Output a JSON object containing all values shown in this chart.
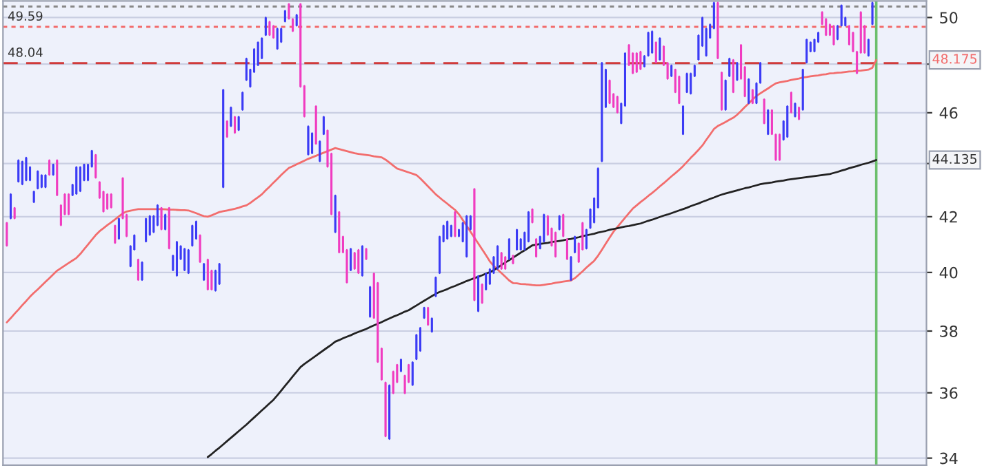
{
  "chart_data": {
    "type": "candlestick",
    "categories": [
      null,
      null,
      null,
      null,
      null,
      null,
      null,
      null,
      null,
      null,
      null,
      null,
      null,
      null,
      null,
      null,
      null,
      null,
      null,
      null,
      null,
      null,
      null,
      null,
      null,
      null,
      null,
      null,
      null,
      null,
      null,
      null,
      null,
      null,
      null,
      null,
      null,
      null,
      null,
      null,
      null,
      null,
      null,
      null,
      null,
      null,
      null,
      null,
      null,
      null,
      null,
      null,
      null,
      null,
      null,
      null,
      null,
      null,
      null,
      null,
      null,
      null,
      null,
      null,
      null,
      null,
      null,
      null,
      null,
      null,
      null,
      null,
      null,
      null,
      null,
      null,
      null,
      null,
      null,
      null,
      null,
      null,
      null,
      null,
      null,
      null,
      null,
      null,
      null,
      null,
      null,
      null,
      null,
      null,
      null,
      null,
      null,
      null,
      null,
      null,
      null,
      null,
      null,
      null,
      null,
      null,
      null,
      null,
      null,
      null,
      null,
      null,
      null,
      null,
      null,
      null,
      null,
      null,
      null,
      null,
      null,
      null,
      null,
      null,
      null,
      null,
      null,
      null,
      null,
      null,
      null,
      null,
      null,
      null,
      null,
      null,
      null,
      null,
      null,
      null,
      null,
      null,
      null,
      null,
      null,
      null,
      null,
      null,
      null,
      null,
      null,
      null,
      null,
      null,
      null,
      null,
      null,
      null,
      null,
      null,
      null,
      null,
      null,
      null,
      null,
      null,
      null,
      null,
      null,
      null,
      null,
      null,
      null,
      null,
      null,
      null,
      null,
      null,
      null,
      null,
      null,
      null,
      null,
      null,
      null,
      null,
      null,
      null,
      null,
      null,
      null,
      null,
      null,
      null,
      null,
      null,
      null,
      null,
      null,
      null,
      null,
      null,
      null,
      null,
      null,
      null,
      null,
      null,
      null,
      null,
      null,
      null,
      null,
      null,
      null,
      null,
      null,
      null,
      null,
      null,
      null,
      null,
      null,
      null,
      null,
      null
    ],
    "ohlc": [
      [
        41.78,
        41.78,
        40.94,
        40.94
      ],
      [
        41.93,
        42.84,
        41.93,
        42.84
      ],
      [
        42.33,
        42.33,
        41.93,
        41.93
      ],
      [
        43.3,
        44.13,
        43.3,
        44.13
      ],
      [
        43.2,
        44.08,
        43.2,
        44.08
      ],
      [
        43.35,
        44.23,
        43.35,
        44.23
      ],
      [
        43.35,
        43.87,
        43.35,
        43.87
      ],
      [
        42.53,
        42.94,
        42.53,
        42.94
      ],
      [
        43.04,
        43.71,
        43.04,
        43.71
      ],
      [
        43.09,
        43.56,
        43.09,
        43.56
      ],
      [
        43.09,
        43.56,
        43.09,
        43.56
      ],
      [
        44.13,
        44.13,
        43.56,
        43.56
      ],
      [
        43.56,
        43.97,
        43.56,
        43.97
      ],
      [
        44.13,
        44.13,
        42.79,
        42.79
      ],
      [
        42.43,
        42.43,
        41.68,
        41.68
      ],
      [
        42.84,
        42.84,
        42.08,
        42.08
      ],
      [
        42.84,
        42.84,
        42.08,
        42.08
      ],
      [
        42.79,
        43.2,
        42.79,
        43.2
      ],
      [
        42.84,
        43.87,
        42.84,
        43.87
      ],
      [
        42.94,
        43.87,
        42.94,
        43.87
      ],
      [
        43.35,
        43.97,
        43.35,
        43.97
      ],
      [
        43.35,
        43.97,
        43.35,
        43.97
      ],
      [
        43.87,
        44.5,
        43.87,
        44.5
      ],
      [
        44.34,
        44.34,
        43.45,
        43.45
      ],
      [
        43.3,
        43.3,
        42.69,
        42.69
      ],
      [
        42.94,
        42.94,
        42.18,
        42.18
      ],
      [
        42.84,
        42.84,
        42.28,
        42.28
      ],
      [
        42.84,
        42.84,
        42.33,
        42.33
      ],
      [
        41.68,
        41.68,
        41.04,
        41.04
      ],
      [
        41.19,
        41.93,
        41.19,
        41.93
      ],
      [
        43.45,
        43.45,
        41.93,
        41.93
      ],
      [
        42.08,
        42.08,
        41.28,
        41.28
      ],
      [
        40.21,
        40.94,
        40.21,
        40.94
      ],
      [
        40.8,
        41.33,
        40.8,
        41.33
      ],
      [
        40.46,
        40.46,
        39.73,
        39.73
      ],
      [
        39.73,
        40.36,
        39.73,
        40.36
      ],
      [
        41.09,
        41.93,
        41.09,
        41.93
      ],
      [
        41.33,
        42.03,
        41.33,
        42.03
      ],
      [
        41.43,
        42.03,
        41.43,
        42.03
      ],
      [
        41.68,
        42.43,
        41.68,
        42.43
      ],
      [
        42.33,
        42.33,
        41.53,
        41.53
      ],
      [
        41.53,
        42.08,
        41.53,
        42.08
      ],
      [
        42.33,
        42.33,
        40.84,
        40.84
      ],
      [
        40.07,
        40.6,
        40.07,
        40.6
      ],
      [
        39.88,
        41.09,
        39.88,
        41.09
      ],
      [
        40.46,
        40.94,
        40.46,
        40.94
      ],
      [
        40.07,
        40.84,
        40.07,
        40.84
      ],
      [
        39.97,
        40.8,
        39.97,
        40.8
      ],
      [
        40.94,
        41.68,
        40.94,
        41.68
      ],
      [
        41.19,
        41.83,
        41.19,
        41.83
      ],
      [
        41.33,
        41.33,
        40.36,
        40.36
      ],
      [
        39.73,
        40.31,
        39.73,
        40.31
      ],
      [
        40.46,
        40.46,
        39.4,
        39.4
      ],
      [
        40.07,
        40.07,
        39.4,
        39.4
      ],
      [
        39.36,
        40.07,
        39.36,
        40.07
      ],
      [
        39.59,
        40.31,
        39.59,
        40.31
      ],
      [
        43.09,
        46.94,
        43.09,
        46.94
      ],
      [
        45.67,
        45.67,
        45.03,
        45.03
      ],
      [
        45.46,
        46.22,
        45.46,
        46.22
      ],
      [
        45.84,
        45.84,
        45.19,
        45.19
      ],
      [
        45.3,
        45.84,
        45.3,
        45.84
      ],
      [
        46.11,
        46.83,
        46.11,
        46.83
      ],
      [
        47.33,
        48.24,
        47.33,
        48.24
      ],
      [
        47.05,
        47.78,
        47.05,
        47.78
      ],
      [
        47.66,
        48.64,
        47.66,
        48.64
      ],
      [
        47.95,
        48.93,
        47.95,
        48.93
      ],
      [
        48.24,
        49.11,
        48.24,
        49.11
      ],
      [
        49.23,
        50.0,
        49.23,
        50.0
      ],
      [
        49.82,
        49.82,
        49.23,
        49.23
      ],
      [
        49.64,
        49.64,
        49.11,
        49.11
      ],
      [
        48.64,
        49.52,
        48.64,
        49.52
      ],
      [
        48.93,
        49.52,
        48.93,
        49.52
      ],
      [
        49.82,
        50.3,
        49.82,
        50.3
      ],
      [
        50.6,
        50.6,
        49.94,
        49.94
      ],
      [
        49.94,
        49.94,
        49.4,
        49.4
      ],
      [
        49.64,
        50.12,
        49.64,
        50.12
      ],
      [
        50.6,
        50.6,
        47.05,
        47.05
      ],
      [
        47.1,
        47.1,
        45.84,
        45.84
      ],
      [
        44.34,
        45.46,
        44.34,
        45.46
      ],
      [
        44.39,
        45.19,
        44.39,
        45.19
      ],
      [
        46.27,
        46.27,
        44.76,
        44.76
      ],
      [
        44.08,
        44.87,
        44.08,
        44.87
      ],
      [
        45.14,
        45.84,
        45.14,
        45.84
      ],
      [
        45.3,
        45.3,
        43.87,
        43.87
      ],
      [
        44.39,
        44.39,
        42.08,
        42.08
      ],
      [
        41.43,
        42.79,
        41.43,
        42.79
      ],
      [
        42.18,
        42.18,
        40.7,
        40.7
      ],
      [
        41.28,
        41.28,
        40.7,
        40.7
      ],
      [
        40.8,
        40.8,
        39.64,
        39.64
      ],
      [
        40.07,
        40.84,
        40.07,
        40.84
      ],
      [
        40.7,
        40.7,
        40.12,
        40.12
      ],
      [
        40.8,
        40.8,
        39.97,
        39.97
      ],
      [
        39.88,
        40.94,
        39.88,
        40.94
      ],
      [
        40.84,
        40.84,
        40.46,
        40.46
      ],
      [
        38.47,
        39.5,
        38.47,
        39.5
      ],
      [
        39.97,
        39.97,
        38.43,
        38.43
      ],
      [
        39.64,
        39.64,
        36.98,
        36.98
      ],
      [
        37.43,
        37.43,
        36.41,
        36.41
      ],
      [
        36.33,
        36.33,
        34.65,
        34.65
      ],
      [
        34.57,
        36.24,
        34.57,
        36.24
      ],
      [
        36.68,
        36.68,
        35.98,
        35.98
      ],
      [
        36.9,
        36.9,
        36.33,
        36.33
      ],
      [
        36.68,
        37.07,
        36.68,
        37.07
      ],
      [
        36.55,
        36.55,
        35.98,
        35.98
      ],
      [
        36.9,
        36.9,
        36.33,
        36.33
      ],
      [
        36.24,
        36.98,
        36.24,
        36.98
      ],
      [
        37.07,
        37.88,
        37.07,
        37.88
      ],
      [
        37.34,
        38.11,
        37.34,
        38.11
      ],
      [
        38.43,
        38.79,
        38.43,
        38.79
      ],
      [
        38.79,
        38.79,
        38.2,
        38.2
      ],
      [
        37.97,
        38.43,
        37.97,
        38.43
      ],
      [
        39.17,
        39.83,
        39.17,
        39.83
      ],
      [
        39.97,
        41.28,
        39.97,
        41.28
      ],
      [
        41.09,
        41.68,
        41.09,
        41.68
      ],
      [
        41.19,
        41.83,
        41.19,
        41.83
      ],
      [
        41.28,
        41.68,
        41.28,
        41.68
      ],
      [
        42.18,
        42.18,
        41.28,
        41.28
      ],
      [
        41.28,
        41.53,
        41.28,
        41.53
      ],
      [
        41.09,
        41.78,
        41.09,
        41.78
      ],
      [
        40.55,
        42.03,
        40.55,
        42.03
      ],
      [
        41.53,
        42.03,
        41.53,
        42.03
      ],
      [
        43.04,
        43.04,
        39.03,
        39.03
      ],
      [
        38.66,
        39.88,
        38.66,
        39.88
      ],
      [
        39.59,
        39.59,
        38.94,
        38.94
      ],
      [
        39.4,
        39.97,
        39.4,
        39.97
      ],
      [
        39.59,
        40.12,
        39.59,
        40.12
      ],
      [
        39.97,
        40.55,
        39.97,
        40.55
      ],
      [
        40.12,
        40.94,
        40.12,
        40.94
      ],
      [
        40.7,
        40.7,
        40.12,
        40.12
      ],
      [
        40.55,
        40.55,
        40.12,
        40.12
      ],
      [
        40.46,
        41.19,
        40.46,
        41.19
      ],
      [
        40.6,
        40.6,
        40.31,
        40.31
      ],
      [
        40.8,
        41.53,
        40.8,
        41.53
      ],
      [
        40.8,
        41.19,
        40.8,
        41.19
      ],
      [
        40.8,
        41.43,
        40.8,
        41.43
      ],
      [
        41.09,
        42.18,
        41.09,
        42.18
      ],
      [
        42.28,
        42.28,
        41.78,
        41.78
      ],
      [
        41.19,
        41.19,
        40.55,
        40.55
      ],
      [
        40.84,
        41.28,
        40.84,
        41.28
      ],
      [
        41.09,
        42.08,
        41.09,
        42.08
      ],
      [
        42.03,
        42.03,
        41.33,
        41.33
      ],
      [
        41.58,
        41.58,
        40.94,
        40.94
      ],
      [
        41.43,
        41.43,
        40.55,
        40.55
      ],
      [
        41.53,
        42.03,
        41.53,
        42.03
      ],
      [
        42.08,
        42.08,
        41.28,
        41.28
      ],
      [
        41.19,
        41.19,
        40.46,
        40.46
      ],
      [
        39.73,
        40.55,
        39.73,
        40.55
      ],
      [
        40.7,
        41.28,
        40.7,
        41.28
      ],
      [
        41.04,
        41.04,
        40.36,
        40.36
      ],
      [
        41.78,
        41.78,
        40.8,
        40.8
      ],
      [
        40.84,
        41.53,
        40.84,
        41.53
      ],
      [
        41.58,
        42.28,
        41.58,
        42.28
      ],
      [
        41.78,
        42.69,
        41.78,
        42.69
      ],
      [
        42.33,
        43.82,
        42.33,
        43.82
      ],
      [
        44.08,
        48.06,
        44.08,
        48.06
      ],
      [
        46.22,
        47.78,
        46.22,
        47.78
      ],
      [
        47.33,
        47.33,
        46.38,
        46.38
      ],
      [
        46.77,
        46.77,
        46.22,
        46.22
      ],
      [
        46.66,
        46.66,
        46.0,
        46.0
      ],
      [
        45.57,
        46.38,
        45.57,
        46.38
      ],
      [
        46.27,
        48.47,
        46.27,
        48.47
      ],
      [
        48.82,
        48.82,
        47.95,
        47.95
      ],
      [
        48.47,
        48.47,
        47.61,
        47.61
      ],
      [
        48.47,
        48.47,
        47.66,
        47.66
      ],
      [
        48.53,
        48.53,
        47.78,
        47.78
      ],
      [
        47.89,
        48.35,
        47.89,
        48.35
      ],
      [
        48.35,
        49.35,
        48.35,
        49.35
      ],
      [
        48.47,
        49.4,
        48.47,
        49.4
      ],
      [
        48.93,
        48.93,
        48.06,
        48.06
      ],
      [
        48.18,
        49.11,
        48.18,
        49.11
      ],
      [
        48.76,
        48.76,
        47.95,
        47.95
      ],
      [
        48.06,
        48.06,
        47.38,
        47.38
      ],
      [
        47.49,
        47.95,
        47.49,
        47.95
      ],
      [
        47.78,
        47.78,
        46.83,
        46.83
      ],
      [
        47.49,
        47.49,
        46.38,
        46.38
      ],
      [
        45.14,
        46.27,
        45.14,
        46.27
      ],
      [
        46.83,
        47.61,
        46.83,
        47.61
      ],
      [
        46.77,
        47.61,
        46.77,
        47.61
      ],
      [
        47.49,
        47.95,
        47.49,
        47.95
      ],
      [
        48.18,
        49.23,
        48.18,
        49.23
      ],
      [
        48.76,
        50.0,
        48.76,
        50.0
      ],
      [
        48.35,
        49.52,
        48.35,
        49.52
      ],
      [
        49.11,
        49.7,
        49.11,
        49.7
      ],
      [
        49.52,
        50.66,
        49.52,
        50.66
      ],
      [
        50.66,
        50.66,
        48.24,
        48.24
      ],
      [
        47.66,
        47.66,
        46.11,
        46.11
      ],
      [
        46.11,
        47.33,
        46.11,
        47.33
      ],
      [
        47.49,
        48.24,
        47.49,
        48.24
      ],
      [
        48.18,
        48.18,
        46.83,
        46.83
      ],
      [
        47.33,
        48.06,
        47.33,
        48.06
      ],
      [
        48.82,
        48.82,
        47.38,
        47.38
      ],
      [
        47.89,
        47.89,
        46.66,
        46.66
      ],
      [
        46.38,
        47.38,
        46.38,
        47.38
      ],
      [
        46.94,
        46.94,
        46.38,
        46.38
      ],
      [
        46.38,
        47.21,
        46.38,
        47.21
      ],
      [
        47.21,
        48.06,
        47.21,
        48.06
      ],
      [
        46.55,
        46.55,
        45.57,
        45.57
      ],
      [
        45.14,
        46.11,
        45.14,
        46.11
      ],
      [
        46.11,
        46.11,
        45.14,
        45.14
      ],
      [
        45.14,
        45.14,
        44.13,
        44.13
      ],
      [
        45.14,
        45.14,
        44.13,
        44.13
      ],
      [
        44.92,
        45.67,
        44.92,
        45.67
      ],
      [
        45.03,
        46.27,
        45.03,
        46.27
      ],
      [
        46.83,
        46.83,
        46.0,
        46.0
      ],
      [
        45.84,
        46.38,
        45.84,
        46.38
      ],
      [
        46.22,
        46.22,
        45.73,
        45.73
      ],
      [
        46.11,
        47.78,
        46.11,
        47.78
      ],
      [
        48.06,
        49.05,
        48.06,
        49.05
      ],
      [
        48.53,
        48.93,
        48.53,
        48.93
      ],
      [
        48.53,
        49.05,
        48.53,
        49.05
      ],
      [
        48.93,
        49.35,
        48.93,
        49.35
      ],
      [
        50.24,
        50.24,
        49.7,
        49.7
      ],
      [
        49.94,
        49.94,
        49.23,
        49.23
      ],
      [
        49.7,
        49.7,
        49.23,
        49.23
      ],
      [
        49.64,
        49.64,
        48.82,
        48.82
      ],
      [
        49.05,
        49.64,
        49.05,
        49.64
      ],
      [
        49.64,
        50.54,
        49.64,
        50.54
      ],
      [
        49.64,
        50.0,
        49.64,
        50.0
      ],
      [
        49.64,
        49.64,
        48.82,
        48.82
      ],
      [
        49.35,
        49.35,
        48.53,
        48.53
      ],
      [
        48.53,
        48.53,
        47.61,
        47.61
      ],
      [
        50.24,
        50.24,
        48.47,
        48.47
      ],
      [
        49.64,
        49.64,
        48.47,
        48.47
      ],
      [
        48.35,
        49.05,
        48.35,
        49.05
      ],
      [
        49.7,
        50.66,
        49.7,
        50.66
      ],
      null
    ],
    "colors": [
      "#f03cc0",
      "#3b3bf5",
      "#f03cc0",
      "#3b3bf5",
      "#3b3bf5",
      "#3b3bf5",
      "#3b3bf5",
      "#3b3bf5",
      "#3b3bf5",
      "#3b3bf5",
      "#3b3bf5",
      "#f03cc0",
      "#3b3bf5",
      "#f03cc0",
      "#f03cc0",
      "#f03cc0",
      "#f03cc0",
      "#3b3bf5",
      "#3b3bf5",
      "#3b3bf5",
      "#3b3bf5",
      "#3b3bf5",
      "#3b3bf5",
      "#f03cc0",
      "#f03cc0",
      "#f03cc0",
      "#f03cc0",
      "#f03cc0",
      "#f03cc0",
      "#3b3bf5",
      "#f03cc0",
      "#f03cc0",
      "#3b3bf5",
      "#3b3bf5",
      "#f03cc0",
      "#3b3bf5",
      "#3b3bf5",
      "#3b3bf5",
      "#3b3bf5",
      "#3b3bf5",
      "#f03cc0",
      "#3b3bf5",
      "#f03cc0",
      "#3b3bf5",
      "#3b3bf5",
      "#3b3bf5",
      "#3b3bf5",
      "#3b3bf5",
      "#3b3bf5",
      "#3b3bf5",
      "#f03cc0",
      "#3b3bf5",
      "#f03cc0",
      "#f03cc0",
      "#3b3bf5",
      "#3b3bf5",
      "#3b3bf5",
      "#f03cc0",
      "#3b3bf5",
      "#f03cc0",
      "#3b3bf5",
      "#3b3bf5",
      "#3b3bf5",
      "#3b3bf5",
      "#3b3bf5",
      "#3b3bf5",
      "#3b3bf5",
      "#3b3bf5",
      "#f03cc0",
      "#f03cc0",
      "#3b3bf5",
      "#3b3bf5",
      "#3b3bf5",
      "#f03cc0",
      "#f03cc0",
      "#3b3bf5",
      "#f03cc0",
      "#f03cc0",
      "#3b3bf5",
      "#3b3bf5",
      "#f03cc0",
      "#3b3bf5",
      "#3b3bf5",
      "#f03cc0",
      "#f03cc0",
      "#3b3bf5",
      "#f03cc0",
      "#f03cc0",
      "#f03cc0",
      "#3b3bf5",
      "#f03cc0",
      "#f03cc0",
      "#3b3bf5",
      "#f03cc0",
      "#3b3bf5",
      "#f03cc0",
      "#f03cc0",
      "#f03cc0",
      "#f03cc0",
      "#3b3bf5",
      "#f03cc0",
      "#f03cc0",
      "#3b3bf5",
      "#f03cc0",
      "#f03cc0",
      "#3b3bf5",
      "#3b3bf5",
      "#3b3bf5",
      "#3b3bf5",
      "#f03cc0",
      "#3b3bf5",
      "#3b3bf5",
      "#3b3bf5",
      "#3b3bf5",
      "#3b3bf5",
      "#3b3bf5",
      "#f03cc0",
      "#3b3bf5",
      "#3b3bf5",
      "#3b3bf5",
      "#3b3bf5",
      "#f03cc0",
      "#3b3bf5",
      "#f03cc0",
      "#3b3bf5",
      "#3b3bf5",
      "#3b3bf5",
      "#3b3bf5",
      "#f03cc0",
      "#f03cc0",
      "#3b3bf5",
      "#f03cc0",
      "#3b3bf5",
      "#3b3bf5",
      "#3b3bf5",
      "#3b3bf5",
      "#f03cc0",
      "#f03cc0",
      "#3b3bf5",
      "#3b3bf5",
      "#f03cc0",
      "#f03cc0",
      "#f03cc0",
      "#3b3bf5",
      "#f03cc0",
      "#f03cc0",
      "#3b3bf5",
      "#3b3bf5",
      "#f03cc0",
      "#f03cc0",
      "#3b3bf5",
      "#3b3bf5",
      "#3b3bf5",
      "#3b3bf5",
      "#3b3bf5",
      "#3b3bf5",
      "#f03cc0",
      "#f03cc0",
      "#f03cc0",
      "#3b3bf5",
      "#3b3bf5",
      "#f03cc0",
      "#f03cc0",
      "#f03cc0",
      "#f03cc0",
      "#3b3bf5",
      "#3b3bf5",
      "#3b3bf5",
      "#f03cc0",
      "#3b3bf5",
      "#f03cc0",
      "#f03cc0",
      "#3b3bf5",
      "#f03cc0",
      "#f03cc0",
      "#3b3bf5",
      "#3b3bf5",
      "#3b3bf5",
      "#3b3bf5",
      "#3b3bf5",
      "#3b3bf5",
      "#3b3bf5",
      "#3b3bf5",
      "#3b3bf5",
      "#f03cc0",
      "#f03cc0",
      "#3b3bf5",
      "#3b3bf5",
      "#f03cc0",
      "#3b3bf5",
      "#f03cc0",
      "#f03cc0",
      "#3b3bf5",
      "#f03cc0",
      "#3b3bf5",
      "#3b3bf5",
      "#f03cc0",
      "#3b3bf5",
      "#f03cc0",
      "#f03cc0",
      "#f03cc0",
      "#3b3bf5",
      "#3b3bf5",
      "#f03cc0",
      "#3b3bf5",
      "#f03cc0",
      "#3b3bf5",
      "#3b3bf5",
      "#3b3bf5",
      "#3b3bf5",
      "#3b3bf5",
      "#f03cc0",
      "#f03cc0",
      "#f03cc0",
      "#f03cc0",
      "#3b3bf5",
      "#3b3bf5",
      "#3b3bf5",
      "#f03cc0",
      "#f03cc0",
      "#f03cc0",
      "#f03cc0",
      "#f03cc0",
      "#3b3bf5",
      "#3b3bf5",
      null
    ],
    "series": [
      {
        "type": "line",
        "color": "#f26d6d",
        "values": [
          38.29,
          38.43,
          38.58,
          38.72,
          38.87,
          39.01,
          39.16,
          39.29,
          39.41,
          39.54,
          39.67,
          39.8,
          39.93,
          40.06,
          40.15,
          40.24,
          40.33,
          40.42,
          40.51,
          40.65,
          40.82,
          40.99,
          41.16,
          41.33,
          41.47,
          41.58,
          41.69,
          41.79,
          41.9,
          42.01,
          42.12,
          42.19,
          42.22,
          42.25,
          42.28,
          42.28,
          42.28,
          42.28,
          42.28,
          42.28,
          42.28,
          42.27,
          42.26,
          42.26,
          42.25,
          42.24,
          42.24,
          42.23,
          42.18,
          42.13,
          42.07,
          42.02,
          42.0,
          42.05,
          42.11,
          42.17,
          42.2,
          42.23,
          42.26,
          42.29,
          42.33,
          42.38,
          42.42,
          42.51,
          42.62,
          42.72,
          42.83,
          42.98,
          43.12,
          43.27,
          43.41,
          43.56,
          43.7,
          43.83,
          43.9,
          43.97,
          44.04,
          44.11,
          44.18,
          44.24,
          44.3,
          44.36,
          44.42,
          44.48,
          44.54,
          44.6,
          44.56,
          44.52,
          44.48,
          44.44,
          44.4,
          44.37,
          44.35,
          44.33,
          44.31,
          44.28,
          44.26,
          44.24,
          44.15,
          44.04,
          43.92,
          43.81,
          43.76,
          43.71,
          43.66,
          43.61,
          43.56,
          43.43,
          43.28,
          43.13,
          42.98,
          42.83,
          42.71,
          42.59,
          42.48,
          42.36,
          42.25,
          42.09,
          41.88,
          41.67,
          41.45,
          41.24,
          41.03,
          40.82,
          40.61,
          40.39,
          40.23,
          40.1,
          39.98,
          39.85,
          39.72,
          39.63,
          39.62,
          39.6,
          39.59,
          39.58,
          39.56,
          39.55,
          39.55,
          39.57,
          39.59,
          39.61,
          39.64,
          39.66,
          39.68,
          39.7,
          39.72,
          39.8,
          39.92,
          40.04,
          40.17,
          40.29,
          40.41,
          40.59,
          40.8,
          41.02,
          41.24,
          41.45,
          41.62,
          41.79,
          41.96,
          42.13,
          42.3,
          42.42,
          42.54,
          42.65,
          42.77,
          42.88,
          43.0,
          43.13,
          43.25,
          43.38,
          43.51,
          43.63,
          43.76,
          43.9,
          44.06,
          44.22,
          44.37,
          44.53,
          44.7,
          44.92,
          45.13,
          45.35,
          45.47,
          45.55,
          45.63,
          45.72,
          45.8,
          45.92,
          46.07,
          46.23,
          46.38,
          46.54,
          46.68,
          46.79,
          46.89,
          46.99,
          47.1,
          47.2,
          47.24,
          47.27,
          47.3,
          47.34,
          47.37,
          47.4,
          47.44,
          47.46,
          47.49,
          47.51,
          47.53,
          47.56,
          47.58,
          47.61,
          47.62,
          47.64,
          47.65,
          47.67,
          47.69,
          47.7,
          47.72,
          47.73,
          47.75,
          47.77,
          47.85,
          48.175
        ]
      },
      {
        "type": "line",
        "color": "#222222",
        "values": [
          null,
          null,
          null,
          null,
          null,
          null,
          null,
          null,
          null,
          null,
          null,
          null,
          null,
          null,
          null,
          null,
          null,
          null,
          null,
          null,
          null,
          null,
          null,
          null,
          null,
          null,
          null,
          null,
          null,
          null,
          null,
          null,
          null,
          null,
          null,
          null,
          null,
          null,
          null,
          null,
          null,
          null,
          null,
          null,
          null,
          null,
          null,
          null,
          null,
          null,
          null,
          null,
          34.03,
          34.12,
          34.22,
          34.31,
          34.41,
          34.51,
          34.61,
          34.71,
          34.81,
          34.91,
          35.01,
          35.12,
          35.23,
          35.34,
          35.45,
          35.56,
          35.67,
          35.78,
          35.92,
          36.07,
          36.22,
          36.37,
          36.52,
          36.67,
          36.82,
          36.92,
          37.01,
          37.1,
          37.19,
          37.28,
          37.37,
          37.46,
          37.55,
          37.65,
          37.7,
          37.76,
          37.81,
          37.86,
          37.92,
          37.97,
          38.02,
          38.07,
          38.13,
          38.19,
          38.24,
          38.3,
          38.36,
          38.42,
          38.48,
          38.53,
          38.59,
          38.65,
          38.7,
          38.78,
          38.86,
          38.94,
          39.02,
          39.1,
          39.18,
          39.26,
          39.32,
          39.37,
          39.42,
          39.48,
          39.53,
          39.59,
          39.64,
          39.7,
          39.75,
          39.8,
          39.85,
          39.9,
          39.96,
          40.01,
          40.08,
          40.17,
          40.26,
          40.35,
          40.43,
          40.52,
          40.61,
          40.7,
          40.78,
          40.87,
          40.96,
          40.98,
          41.01,
          41.03,
          41.05,
          41.08,
          41.1,
          41.12,
          41.14,
          41.17,
          41.19,
          41.22,
          41.25,
          41.29,
          41.32,
          41.35,
          41.38,
          41.42,
          41.45,
          41.48,
          41.52,
          41.55,
          41.58,
          41.61,
          41.64,
          41.66,
          41.69,
          41.72,
          41.75,
          41.8,
          41.85,
          41.89,
          41.94,
          41.99,
          42.04,
          42.08,
          42.13,
          42.18,
          42.23,
          42.28,
          42.33,
          42.39,
          42.44,
          42.49,
          42.55,
          42.6,
          42.66,
          42.71,
          42.77,
          42.82,
          42.86,
          42.9,
          42.94,
          42.98,
          43.02,
          43.06,
          43.09,
          43.13,
          43.17,
          43.21,
          43.24,
          43.26,
          43.28,
          43.31,
          43.33,
          43.35,
          43.38,
          43.4,
          43.42,
          43.44,
          43.46,
          43.48,
          43.5,
          43.52,
          43.54,
          43.56,
          43.58,
          43.6,
          43.64,
          43.68,
          43.73,
          43.77,
          43.82,
          43.86,
          43.9,
          43.95,
          43.99,
          44.03,
          44.08,
          44.135
        ]
      }
    ],
    "log": true,
    "ylim": [
      33.79,
      50.73
    ],
    "yticks": [
      34,
      36,
      38,
      40,
      42,
      {
        "value": 44,
        "label": null
      },
      46,
      {
        "value": 48,
        "label": null
      },
      50
    ],
    "tick_labels": "y",
    "grid": "y",
    "ref_lines": [
      {
        "axis": "y",
        "value": 50.48,
        "color": "#888888",
        "line_style": "dotted"
      },
      {
        "axis": "y",
        "value": 49.59,
        "label": "49.59",
        "color": "#f26d6d",
        "line_style": "dotted"
      },
      {
        "axis": "y",
        "value": 48.04,
        "label": "48.04",
        "color": "#d03a3a",
        "line_style": "dashed"
      }
    ],
    "annotations": [
      "48.175",
      "44.135"
    ]
  }
}
